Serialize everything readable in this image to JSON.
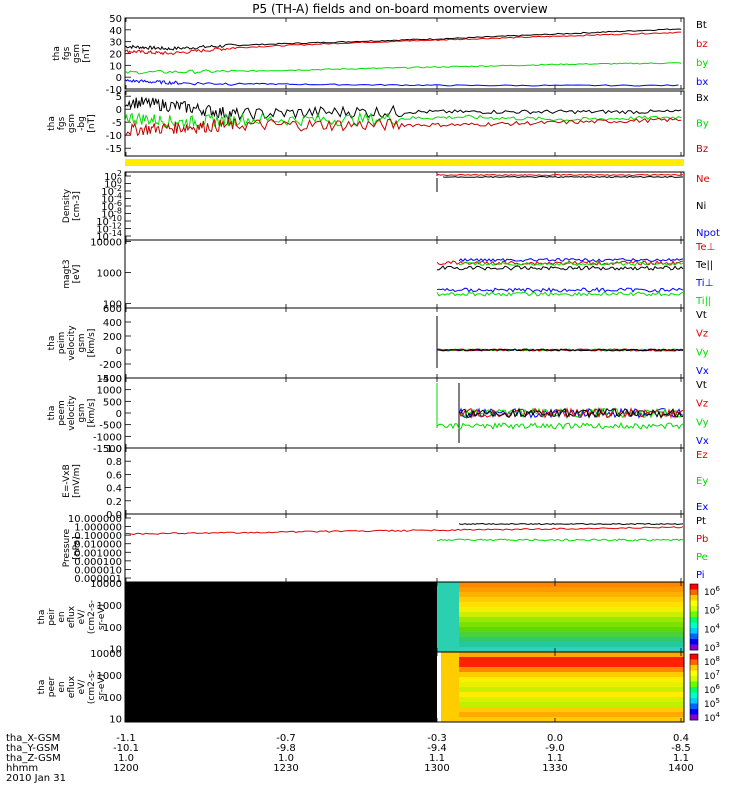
{
  "title": "P5 (TH-A) fields and on-board moments overview",
  "chart_data": [
    {
      "type": "line",
      "ylabel": [
        "tha",
        "fgs",
        "gsm",
        "[nT]"
      ],
      "ylim": [
        -10,
        50
      ],
      "yticks": [
        -10,
        0,
        10,
        20,
        30,
        40,
        50
      ],
      "x_range": [
        "12:00",
        "14:00"
      ],
      "series": [
        {
          "name": "Bt",
          "color": "#000000",
          "points": [
            [
              0,
              26
            ],
            [
              0.08,
              24
            ],
            [
              0.2,
              27
            ],
            [
              0.4,
              30
            ],
            [
              0.6,
              33
            ],
            [
              0.8,
              37
            ],
            [
              1.0,
              41
            ]
          ]
        },
        {
          "name": "bz",
          "color": "#e00000",
          "points": [
            [
              0,
              22
            ],
            [
              0.08,
              20
            ],
            [
              0.2,
              25
            ],
            [
              0.4,
              29
            ],
            [
              0.6,
              32
            ],
            [
              0.8,
              35
            ],
            [
              1.0,
              38
            ]
          ]
        },
        {
          "name": "by",
          "color": "#00dd00",
          "points": [
            [
              0,
              4
            ],
            [
              0.2,
              5
            ],
            [
              0.4,
              7
            ],
            [
              0.6,
              9
            ],
            [
              0.8,
              11
            ],
            [
              1.0,
              12
            ]
          ]
        },
        {
          "name": "bx",
          "color": "#0000ff",
          "points": [
            [
              0,
              -3
            ],
            [
              0.1,
              -5
            ],
            [
              0.3,
              -6
            ],
            [
              0.6,
              -7
            ],
            [
              1.0,
              -7
            ]
          ]
        }
      ]
    },
    {
      "type": "line",
      "ylabel": [
        "tha",
        "fgs",
        "gsm",
        "-bg",
        "[nT]"
      ],
      "ylim": [
        -18,
        7
      ],
      "yticks": [
        -15,
        -10,
        -5,
        0,
        5
      ],
      "x_range": [
        "12:00",
        "14:00"
      ],
      "series": [
        {
          "name": "Bx",
          "color": "#000000",
          "points": [
            [
              0,
              3
            ],
            [
              0.1,
              1
            ],
            [
              0.2,
              -2
            ],
            [
              0.4,
              -1
            ],
            [
              0.6,
              -1
            ],
            [
              0.8,
              -1
            ],
            [
              1.0,
              -1
            ]
          ]
        },
        {
          "name": "By",
          "color": "#00dd00",
          "points": [
            [
              0,
              -3
            ],
            [
              0.1,
              -5
            ],
            [
              0.2,
              -4
            ],
            [
              0.4,
              -4
            ],
            [
              0.6,
              -3
            ],
            [
              0.8,
              -4
            ],
            [
              1.0,
              -3
            ]
          ]
        },
        {
          "name": "Bz",
          "color": "#c00000",
          "points": [
            [
              0,
              -8
            ],
            [
              0.1,
              -7
            ],
            [
              0.2,
              -6
            ],
            [
              0.4,
              -6
            ],
            [
              0.6,
              -6
            ],
            [
              0.8,
              -5
            ],
            [
              1.0,
              -4
            ]
          ]
        }
      ]
    },
    {
      "type": "line",
      "ylabel": [
        "Density",
        "[cm-3]"
      ],
      "y_scale": "log",
      "ytick_labels": [
        "10^2",
        "10^0",
        "10^-2",
        "10^-4",
        "10^-6",
        "10^-8",
        "10^-10",
        "10^-12",
        "10^-14"
      ],
      "legend": [
        "Ne",
        "Ni",
        "Npot"
      ],
      "legend_colors": [
        "#e00000",
        "#000000",
        "#0000ff"
      ],
      "data_start": "13:13"
    },
    {
      "type": "line",
      "ylabel": [
        "magt3",
        "[eV]"
      ],
      "y_scale": "log",
      "yticks": [
        100,
        1000,
        10000
      ],
      "legend": [
        "Te⊥",
        "Te||",
        "Ti⊥",
        "Ti||"
      ],
      "legend_colors": [
        "#e00000",
        "#000000",
        "#0000ff",
        "#00dd00"
      ],
      "data_start": "13:13"
    },
    {
      "type": "line",
      "ylabel": [
        "tha",
        "peim",
        "velocity",
        "gsm",
        "[km/s]"
      ],
      "ylim": [
        -400,
        600
      ],
      "yticks": [
        -400,
        -200,
        0,
        200,
        400,
        600
      ],
      "legend": [
        "Vt",
        "Vz",
        "Vy",
        "Vx"
      ],
      "legend_colors": [
        "#000000",
        "#e00000",
        "#00dd00",
        "#0000ff"
      ],
      "data_start": "13:13"
    },
    {
      "type": "line",
      "ylabel": [
        "tha",
        "peem",
        "velocity",
        "gsm",
        "[km/s]"
      ],
      "ylim": [
        -1500,
        1500
      ],
      "yticks": [
        -1500,
        -1000,
        -500,
        0,
        500,
        1000,
        1500
      ],
      "legend": [
        "Vt",
        "Vz",
        "Vy",
        "Vx"
      ],
      "legend_colors": [
        "#000000",
        "#e00000",
        "#00dd00",
        "#0000ff"
      ],
      "data_start": "13:13"
    },
    {
      "type": "line",
      "ylabel": [
        "E=-VxB",
        "[mV/m]"
      ],
      "ylim": [
        0,
        1
      ],
      "yticks": [
        0.0,
        0.2,
        0.4,
        0.6,
        0.8,
        1.0
      ],
      "legend": [
        "Ez",
        "Ey",
        "Ex"
      ],
      "legend_colors": [
        "#e00000",
        "#00dd00",
        "#0000ff"
      ]
    },
    {
      "type": "line",
      "ylabel": [
        "Pressure",
        "[nPa]"
      ],
      "y_scale": "log",
      "ytick_labels": [
        "10.000000",
        "1.000000",
        "0.100000",
        "0.010000",
        "0.001000",
        "0.000100",
        "0.000010",
        "0.000001"
      ],
      "legend": [
        "Pt",
        "Pb",
        "Pe",
        "Pi"
      ],
      "legend_colors": [
        "#000000",
        "#e00000",
        "#00dd00",
        "#0000ff"
      ]
    },
    {
      "type": "heatmap",
      "ylabel": [
        "tha",
        "peir",
        "en",
        "eflux",
        "eV/",
        "(cm2-s-",
        "sr-eV)"
      ],
      "y_scale": "log",
      "yticks": [
        10,
        100,
        1000,
        10000
      ],
      "colorbar_labels": [
        "10^6",
        "10^5",
        "10^4",
        "10^3"
      ],
      "data_start": "13:13"
    },
    {
      "type": "heatmap",
      "ylabel": [
        "tha",
        "peer",
        "en",
        "eflux",
        "eV/",
        "(cm2-s-",
        "sr-eV)"
      ],
      "y_scale": "log",
      "yticks": [
        10,
        100,
        1000,
        10000
      ],
      "colorbar_labels": [
        "10^8",
        "10^7",
        "10^6",
        "10^5",
        "10^4"
      ],
      "data_start": "13:13"
    }
  ],
  "x_axis": {
    "row_labels": [
      "tha_X-GSM",
      "tha_Y-GSM",
      "tha_Z-GSM",
      "hhmm",
      "2010 Jan 31"
    ],
    "ticks": [
      {
        "time": "1200",
        "x": "-1.1",
        "y": "-10.1",
        "z": "1.0"
      },
      {
        "time": "1230",
        "x": "-0.7",
        "y": "-9.8",
        "z": "1.0"
      },
      {
        "time": "1300",
        "x": "-0.3",
        "y": "-9.4",
        "z": "1.1"
      },
      {
        "time": "1330",
        "x": "0.0",
        "y": "-9.0",
        "z": "1.1"
      },
      {
        "time": "1400",
        "x": "0.4",
        "y": "-8.5",
        "z": "1.1"
      }
    ]
  }
}
